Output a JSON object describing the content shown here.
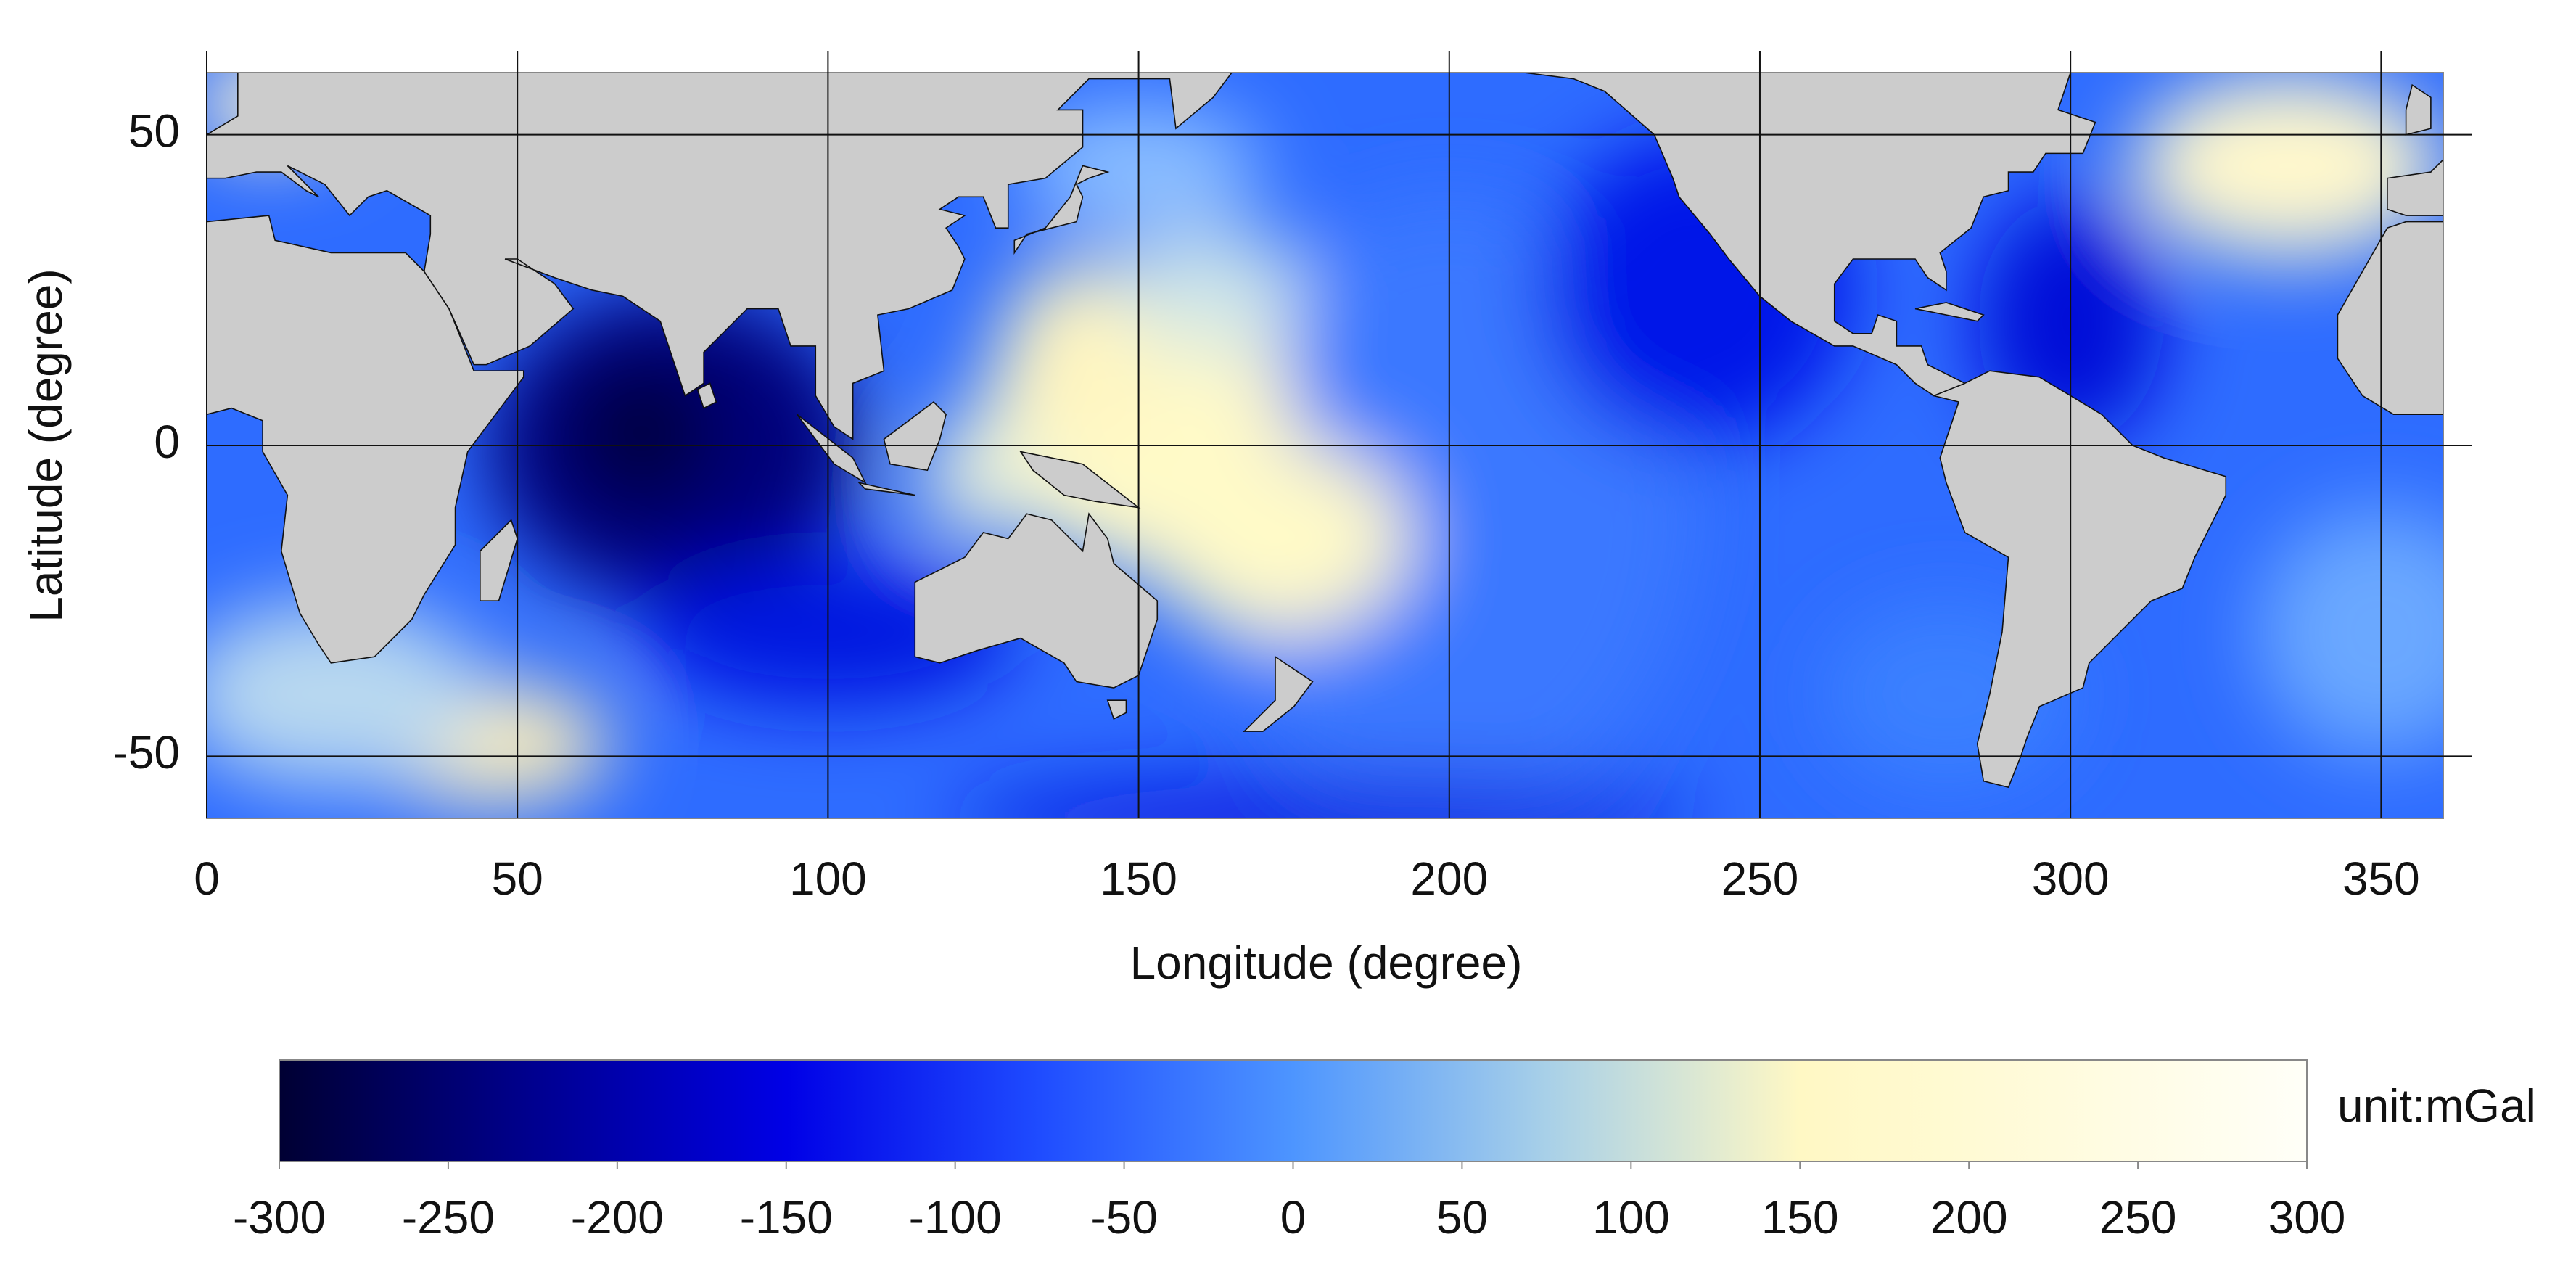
{
  "chart_data": {
    "type": "heatmap",
    "x_label": "Longitude (degree)",
    "y_label": "Latitude (degree)",
    "xlim": [
      0,
      360
    ],
    "ylim": [
      -60,
      60
    ],
    "xticks": [
      0,
      50,
      100,
      150,
      200,
      250,
      300,
      350
    ],
    "yticks": [
      -50,
      0,
      50
    ],
    "grid": true,
    "colorbar": {
      "label": "unit:mGal",
      "lim": [
        -300,
        300
      ],
      "ticks": [
        -300,
        -250,
        -200,
        -150,
        -100,
        -50,
        0,
        50,
        100,
        150,
        200,
        250,
        300
      ],
      "colors": [
        "#000033",
        "#00008f",
        "#0000e6",
        "#1f4cff",
        "#4d95ff",
        "#a8d0e8",
        "#fff8c4",
        "#fffbdc",
        "#fffff8"
      ]
    }
  }
}
